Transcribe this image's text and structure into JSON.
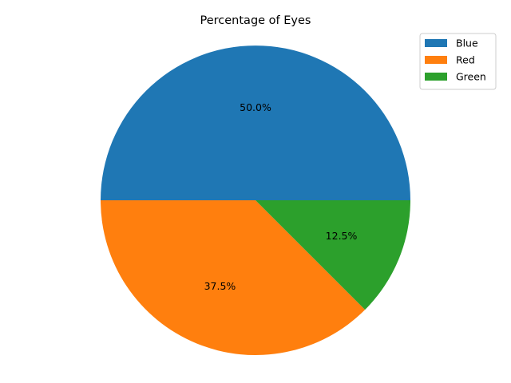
{
  "chart_data": {
    "type": "pie",
    "title": "Percentage of Eyes",
    "categories": [
      "Blue",
      "Red",
      "Green"
    ],
    "values": [
      50.0,
      37.5,
      12.5
    ],
    "percent_labels": [
      "50.0%",
      "37.5%",
      "12.5%"
    ],
    "colors": [
      "#1f77b4",
      "#ff7f0e",
      "#2ca02c"
    ],
    "start_angle_deg": 0,
    "direction": "counterclockwise",
    "legend": {
      "placement": "top-right",
      "entries": [
        "Blue",
        "Red",
        "Green"
      ]
    }
  }
}
